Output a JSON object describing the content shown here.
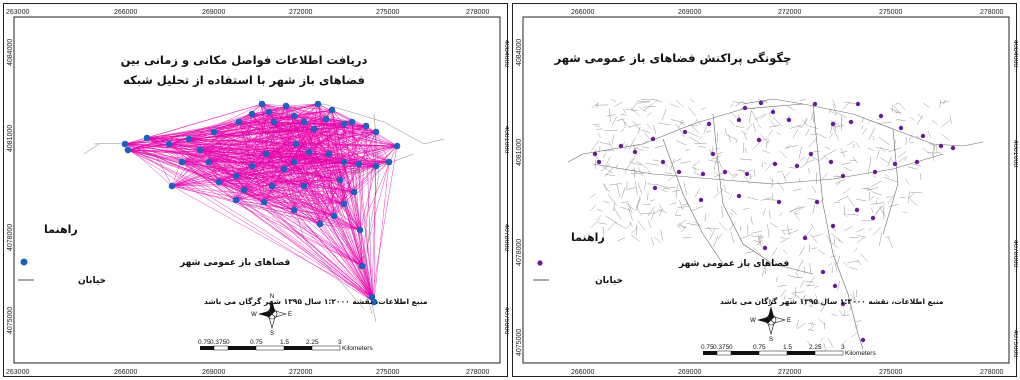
{
  "x_ticks": [
    "263000",
    "266000",
    "269000",
    "272000",
    "275000",
    "278000"
  ],
  "y_ticks": [
    "4084000",
    "4081000",
    "4078000",
    "4075000"
  ],
  "left_map": {
    "title_line1": "دریافت اطلاعات فواصل مکانی و زمانی بین",
    "title_line2": "فضاهای باز شهر با استفاده از تحلیل شبکه",
    "legend_title": "راهنما",
    "legend_points": "فضاهای باز عمومی شهر",
    "legend_streets": "خیابان",
    "source": "منبع اطلاعات، نقشه ۱:۲۰۰۰ سال ۱۳۹۵ شهر گرگان می باشد",
    "scale_labels": [
      "0.75",
      "0.375",
      "0",
      "0.75",
      "1.5",
      "2.25",
      "3"
    ],
    "scale_unit": "Kilometers",
    "point_color": "#1f5fbf",
    "line_color": "#e600a9"
  },
  "right_map": {
    "title": "چگونگی پراکنش فضاهای باز عمومی شهر",
    "x_ticks": [
      "266000",
      "269000",
      "272000",
      "275000",
      "278000"
    ],
    "y_ticks": [
      "4084000",
      "4081000",
      "4078000",
      "4075000"
    ],
    "legend_title": "راهنما",
    "legend_points": "فضاهای باز عمومی شهر",
    "legend_streets": "خیابان",
    "source": "منبع اطلاعات، نقشه ۱:۲۰۰۰ سال ۱۳۹۵ شهر گرگان می باشد",
    "scale_labels": [
      "0.75",
      "0.375",
      "0",
      "0.75",
      "1.5",
      "2.25",
      "3"
    ],
    "scale_unit": "Kilometers",
    "point_color": "#6a1b9a"
  },
  "compass": {
    "n": "N",
    "s": "S",
    "e": "E",
    "w": "W"
  }
}
